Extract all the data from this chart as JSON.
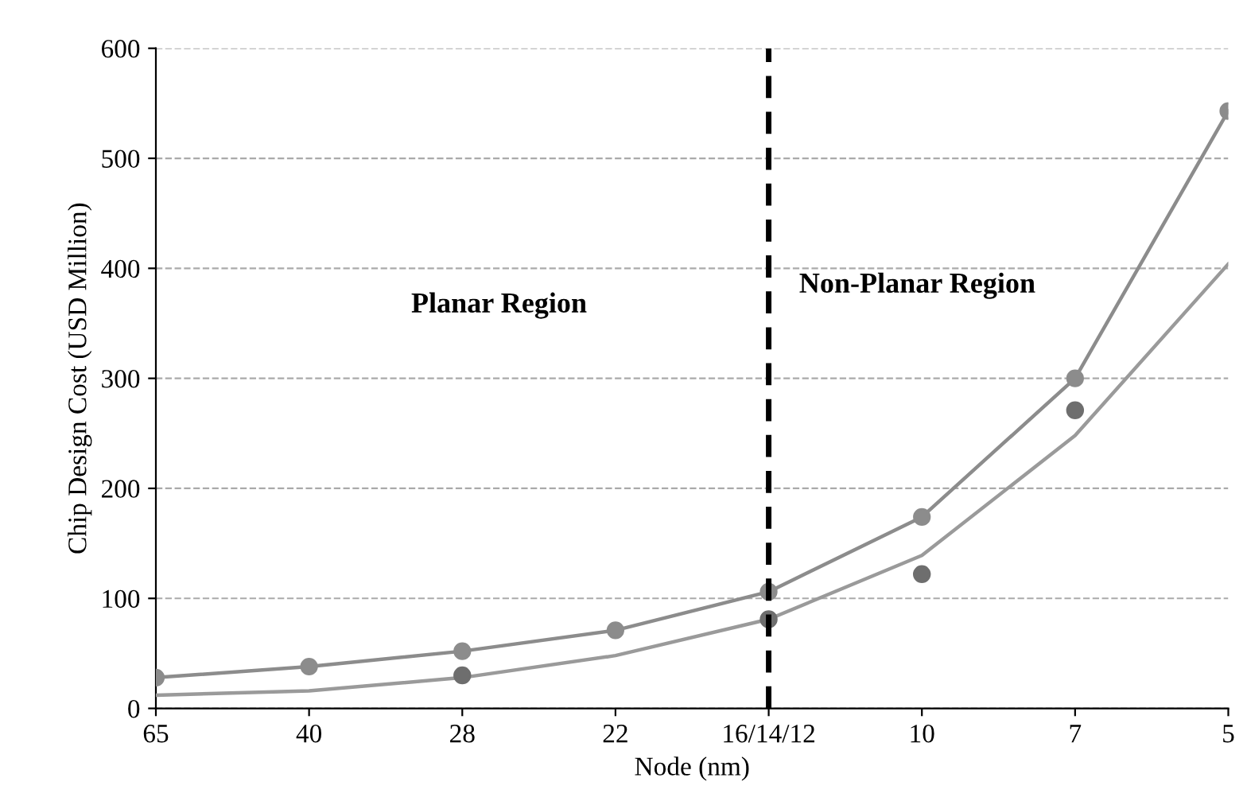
{
  "chart_data": {
    "type": "line",
    "xlabel": "Node (nm)",
    "ylabel": "Chip Design Cost (USD Million)",
    "categories": [
      "65",
      "40",
      "28",
      "22",
      "16/14/12",
      "10",
      "7",
      "5"
    ],
    "series": [
      {
        "marker": "circle",
        "color": "#8c8c8c",
        "values": [
          28,
          38,
          52,
          71,
          106,
          174,
          300,
          543
        ]
      },
      {
        "type": "scatter",
        "marker": "circle",
        "color": "#6e6e6e",
        "values": [
          null,
          null,
          30,
          null,
          81,
          122,
          271,
          null
        ]
      },
      {
        "marker": "none",
        "color": "#9a9a9a",
        "values": [
          12,
          16,
          28,
          48,
          81,
          139,
          248,
          404
        ]
      }
    ],
    "ylim": [
      0,
      600
    ],
    "yticks": [
      0,
      100,
      200,
      300,
      400,
      500,
      600
    ],
    "grid": "y",
    "legend": false,
    "ref_lines": [
      {
        "axis": "x",
        "value": "16/14/12",
        "color": "#000000",
        "line_style": "dashed"
      }
    ],
    "annotations": [
      "Planar Region",
      "Non-Planar Region"
    ]
  }
}
